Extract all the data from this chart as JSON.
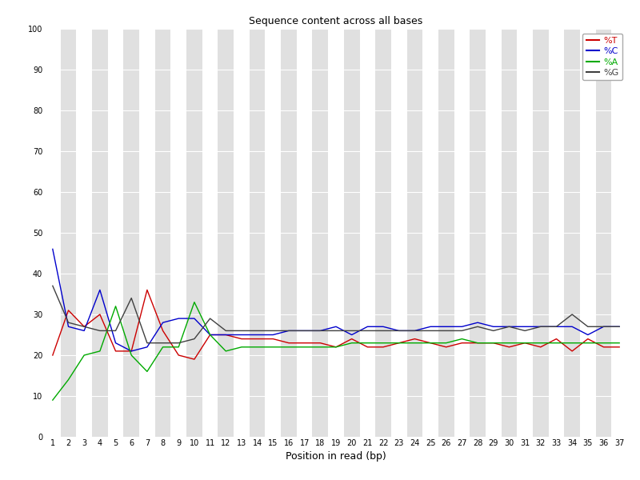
{
  "title": "Sequence content across all bases",
  "xlabel": "Position in read (bp)",
  "xlim_min": 0.5,
  "xlim_max": 37.5,
  "ylim": [
    0,
    100
  ],
  "yticks": [
    0,
    10,
    20,
    30,
    40,
    50,
    60,
    70,
    80,
    90,
    100
  ],
  "xticks": [
    1,
    2,
    3,
    4,
    5,
    6,
    7,
    8,
    9,
    10,
    11,
    12,
    13,
    14,
    15,
    16,
    17,
    18,
    19,
    20,
    21,
    22,
    23,
    24,
    25,
    26,
    27,
    28,
    29,
    30,
    31,
    32,
    33,
    34,
    35,
    36,
    37
  ],
  "positions": [
    1,
    2,
    3,
    4,
    5,
    6,
    7,
    8,
    9,
    10,
    11,
    12,
    13,
    14,
    15,
    16,
    17,
    18,
    19,
    20,
    21,
    22,
    23,
    24,
    25,
    26,
    27,
    28,
    29,
    30,
    31,
    32,
    33,
    34,
    35,
    36,
    37
  ],
  "T": [
    20,
    31,
    27,
    30,
    21,
    21,
    36,
    26,
    20,
    19,
    25,
    25,
    24,
    24,
    24,
    23,
    23,
    23,
    22,
    24,
    22,
    22,
    23,
    24,
    23,
    22,
    23,
    23,
    23,
    22,
    23,
    22,
    24,
    21,
    24,
    22,
    22
  ],
  "C": [
    46,
    27,
    26,
    36,
    23,
    21,
    22,
    28,
    29,
    29,
    25,
    25,
    25,
    25,
    25,
    26,
    26,
    26,
    27,
    25,
    27,
    27,
    26,
    26,
    27,
    27,
    27,
    28,
    27,
    27,
    27,
    27,
    27,
    27,
    25,
    27,
    27
  ],
  "A": [
    9,
    14,
    20,
    21,
    32,
    20,
    16,
    22,
    22,
    33,
    25,
    21,
    22,
    22,
    22,
    22,
    22,
    22,
    22,
    23,
    23,
    23,
    23,
    23,
    23,
    23,
    24,
    23,
    23,
    23,
    23,
    23,
    23,
    23,
    23,
    23,
    23
  ],
  "G": [
    37,
    28,
    27,
    26,
    26,
    34,
    23,
    23,
    23,
    24,
    29,
    26,
    26,
    26,
    26,
    26,
    26,
    26,
    26,
    26,
    26,
    26,
    26,
    26,
    26,
    26,
    26,
    27,
    26,
    27,
    26,
    27,
    27,
    30,
    27,
    27,
    27
  ],
  "T_color": "#cc0000",
  "C_color": "#0000cc",
  "A_color": "#00aa00",
  "G_color": "#404040",
  "bg_color": "#ffffff",
  "band_color_dark": "#e0e0e0",
  "band_color_light": "#ffffff",
  "grid_color": "#ffffff",
  "legend_labels": [
    "%T",
    "%C",
    "%A",
    "%G"
  ],
  "legend_colors": [
    "#cc0000",
    "#0000cc",
    "#00aa00",
    "#404040"
  ],
  "title_fontsize": 9,
  "tick_fontsize": 7,
  "xlabel_fontsize": 9
}
